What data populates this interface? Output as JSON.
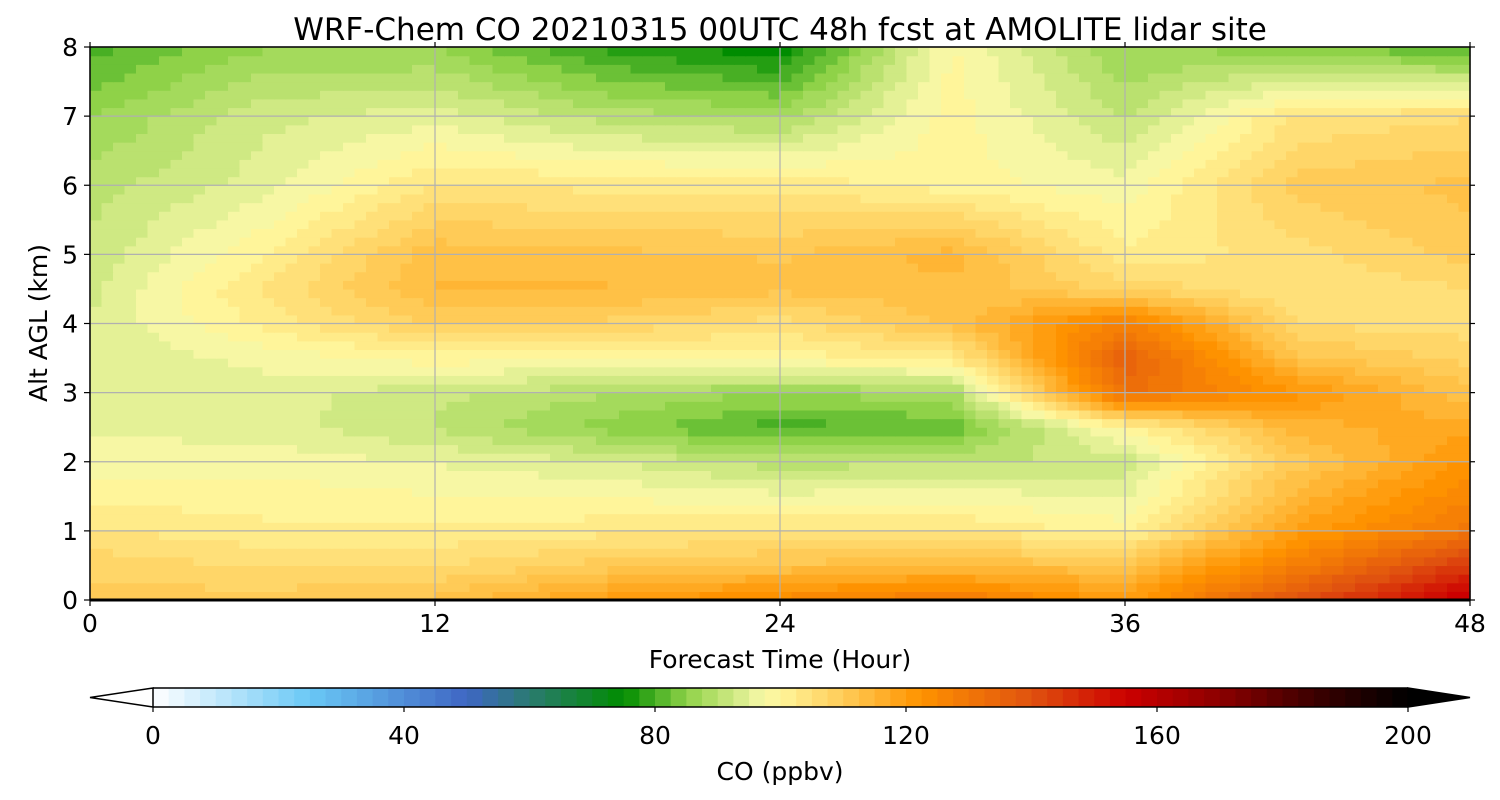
{
  "chart_data": {
    "type": "heatmap",
    "title": "WRF-Chem CO  20210315 00UTC 48h fcst at AMOLITE lidar site",
    "xlabel": "Forecast Time (Hour)",
    "ylabel": "Alt AGL (km)",
    "xlim": [
      0,
      48
    ],
    "ylim": [
      0,
      8
    ],
    "xticks": [
      "0",
      "12",
      "24",
      "36",
      "48"
    ],
    "yticks": [
      "0",
      "1",
      "2",
      "3",
      "4",
      "5",
      "6",
      "7",
      "8"
    ],
    "grid": true,
    "x": [
      0,
      6,
      12,
      18,
      24,
      30,
      36,
      42,
      48
    ],
    "y": [
      0,
      0.5,
      1,
      2,
      2.5,
      3,
      3.5,
      4,
      4.5,
      5,
      6,
      7,
      8
    ],
    "z": [
      [
        110,
        110,
        112,
        120,
        125,
        130,
        120,
        140,
        158
      ],
      [
        108,
        106,
        106,
        110,
        112,
        113,
        112,
        128,
        145
      ],
      [
        104,
        102,
        102,
        103,
        104,
        104,
        100,
        120,
        130
      ],
      [
        97,
        98,
        96,
        94,
        90,
        91,
        92,
        110,
        122
      ],
      [
        96,
        95,
        91,
        85,
        80,
        82,
        100,
        115,
        118
      ],
      [
        95,
        95,
        92,
        89,
        86,
        88,
        132,
        122,
        112
      ],
      [
        94,
        97,
        100,
        99,
        100,
        102,
        136,
        112,
        108
      ],
      [
        94,
        102,
        109,
        108,
        105,
        112,
        128,
        106,
        105
      ],
      [
        93,
        104,
        114,
        114,
        112,
        113,
        108,
        104,
        106
      ],
      [
        92,
        101,
        113,
        112,
        111,
        115,
        102,
        105,
        110
      ],
      [
        90,
        95,
        104,
        103,
        103,
        100,
        97,
        110,
        112
      ],
      [
        86,
        93,
        95,
        90,
        88,
        100,
        91,
        104,
        106
      ],
      [
        80,
        86,
        86,
        78,
        74,
        99,
        86,
        85,
        80
      ]
    ],
    "colorbar": {
      "label": "CO  (ppbv)",
      "min": 0,
      "max": 200,
      "ticks": [
        "0",
        "40",
        "80",
        "120",
        "160",
        "200"
      ],
      "extend": "both",
      "stops": [
        {
          "v": 0,
          "c": "#ffffff"
        },
        {
          "v": 25,
          "c": "#69c8f5"
        },
        {
          "v": 50,
          "c": "#3f66c4"
        },
        {
          "v": 60,
          "c": "#2a7a70"
        },
        {
          "v": 75,
          "c": "#008c00"
        },
        {
          "v": 85,
          "c": "#8fd248"
        },
        {
          "v": 97,
          "c": "#f5f7a6"
        },
        {
          "v": 100,
          "c": "#fff59a"
        },
        {
          "v": 112,
          "c": "#ffc34a"
        },
        {
          "v": 122,
          "c": "#ff9400"
        },
        {
          "v": 140,
          "c": "#e0520f"
        },
        {
          "v": 155,
          "c": "#cc0000"
        },
        {
          "v": 170,
          "c": "#8c0000"
        },
        {
          "v": 185,
          "c": "#3c0000"
        },
        {
          "v": 200,
          "c": "#000000"
        }
      ]
    }
  }
}
